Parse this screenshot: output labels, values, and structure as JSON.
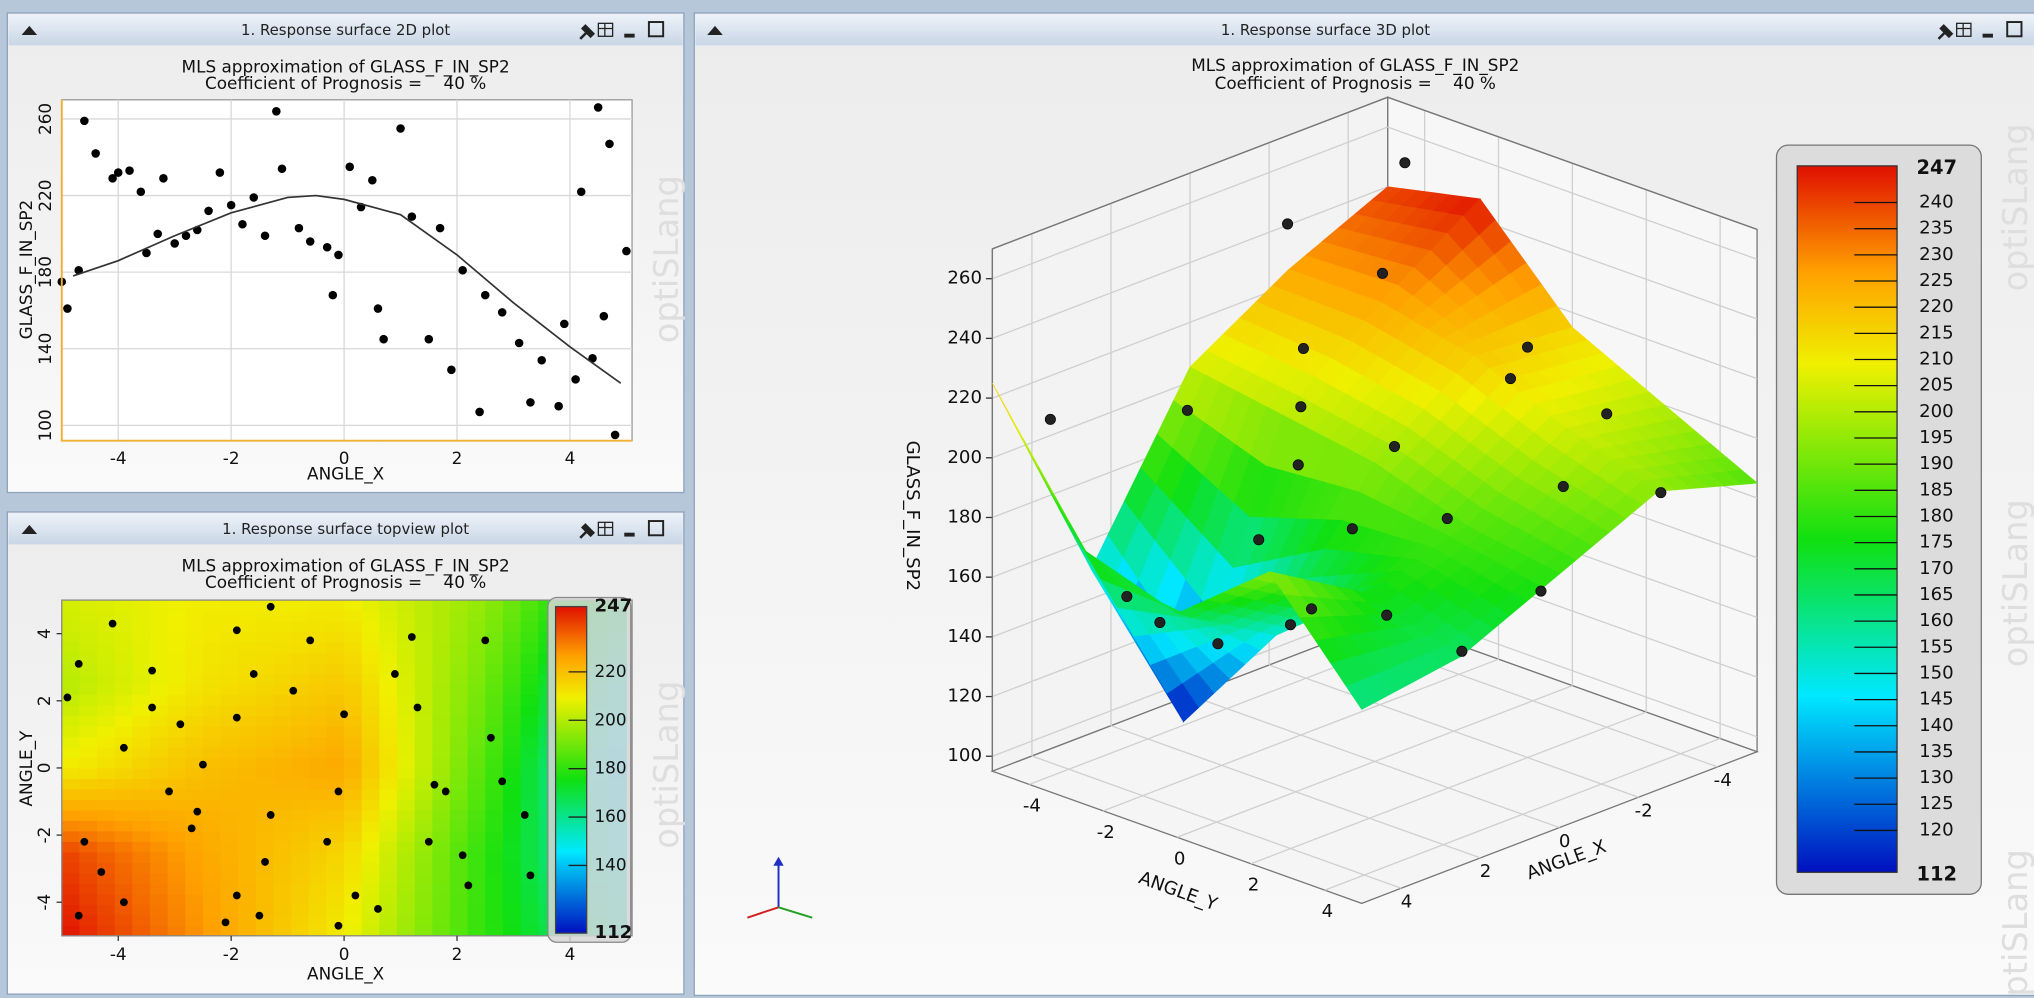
{
  "windows": [
    {
      "title": "1. Response surface 2D plot"
    },
    {
      "title": "1. Response surface topview plot"
    },
    {
      "title": "1. Response surface 3D plot"
    }
  ],
  "watermark": "optiSLang",
  "chart_data": [
    {
      "type": "scatter",
      "title": "MLS approximation of GLASS_F_IN_SP2",
      "subtitle": "Coefficient of Prognosis =    40 %",
      "x_label": "ANGLE_X",
      "y_label": "GLASS_F_IN_SP2",
      "xlim": [
        -5,
        5.1
      ],
      "ylim": [
        92,
        270
      ],
      "xticks": [
        -4,
        -2,
        0,
        2,
        4
      ],
      "yticks": [
        100,
        140,
        180,
        220,
        260
      ],
      "grid": true,
      "series": [
        {
          "mode": "markers",
          "color": "#000000",
          "x": [
            -5.0,
            -4.9,
            -4.7,
            -4.6,
            -4.4,
            -4.1,
            -4.0,
            -3.8,
            -3.6,
            -3.5,
            -3.3,
            -3.2,
            -3.0,
            -2.8,
            -2.6,
            -2.4,
            -2.2,
            -2.0,
            -1.8,
            -1.6,
            -1.4,
            -1.2,
            -1.1,
            -0.8,
            -0.6,
            -0.3,
            -0.1,
            -0.2,
            0.1,
            0.3,
            0.5,
            0.6,
            0.7,
            1.0,
            1.2,
            1.5,
            1.7,
            1.9,
            2.1,
            2.4,
            2.5,
            2.8,
            3.1,
            3.3,
            3.5,
            3.8,
            3.9,
            4.1,
            4.2,
            4.4,
            4.5,
            4.7,
            4.6,
            5.0,
            4.8
          ],
          "values": [
            175,
            161,
            181,
            259,
            242,
            229,
            232,
            233,
            222,
            190,
            200,
            229,
            195,
            199,
            202,
            212,
            232,
            215,
            205,
            219,
            199,
            264,
            234,
            203,
            196,
            193,
            189,
            168,
            235,
            214,
            228,
            161,
            145,
            255,
            209,
            145,
            203,
            129,
            181,
            107,
            168,
            159,
            143,
            112,
            134,
            110,
            153,
            124,
            222,
            135,
            266,
            247,
            157,
            191,
            95
          ]
        },
        {
          "mode": "line",
          "color": "#333333",
          "x": [
            -4.8,
            -4,
            -3,
            -2,
            -1,
            -0.5,
            0,
            1,
            2,
            3,
            4,
            4.9
          ],
          "values": [
            178,
            186,
            199,
            211,
            219,
            220,
            218,
            210,
            189,
            164,
            141,
            122
          ]
        }
      ]
    },
    {
      "type": "heatmap",
      "title": "MLS approximation of GLASS_F_IN_SP2",
      "subtitle": "Coefficient of Prognosis =    40 %",
      "x_label": "ANGLE_X",
      "y_label": "ANGLE_Y",
      "xlim": [
        -5,
        5.1
      ],
      "ylim": [
        -5,
        5
      ],
      "xticks": [
        -4,
        -2,
        0,
        2,
        4
      ],
      "yticks": [
        -4,
        -2,
        0,
        2,
        4
      ],
      "grid_x": [
        -5,
        -2.5,
        0,
        2.5,
        5
      ],
      "grid_y": [
        -5,
        -2.5,
        0,
        2.5,
        5
      ],
      "z": [
        [
          247,
          228,
          210,
          180,
          155
        ],
        [
          240,
          225,
          215,
          180,
          145
        ],
        [
          210,
          220,
          225,
          185,
          140
        ],
        [
          200,
          212,
          218,
          190,
          150
        ],
        [
          205,
          210,
          210,
          195,
          165
        ]
      ],
      "colorbar": {
        "lim": [
          112,
          247
        ],
        "ticks": [
          140,
          160,
          180,
          200,
          220
        ]
      },
      "points": {
        "color": "#000000",
        "x": [
          -4.9,
          -4.7,
          -4.1,
          -3.9,
          -3.4,
          -3.4,
          -2.9,
          -2.5,
          -2.6,
          -1.9,
          -1.9,
          -1.6,
          -1.3,
          -1.3,
          -1.4,
          -1.9,
          -2.1,
          -0.9,
          -0.6,
          0.0,
          -0.1,
          -0.3,
          0.6,
          0.2,
          0.9,
          1.2,
          1.3,
          1.6,
          1.8,
          1.5,
          2.1,
          2.2,
          2.5,
          2.6,
          2.8,
          3.2,
          3.3,
          -4.6,
          -4.3,
          -3.9,
          -4.7,
          -2.7,
          -3.1,
          -1.5,
          -0.1
        ],
        "y": [
          2.1,
          3.1,
          4.3,
          0.6,
          1.8,
          2.9,
          1.3,
          0.1,
          -1.3,
          4.1,
          1.5,
          2.8,
          4.8,
          -1.4,
          -2.8,
          -3.8,
          -4.6,
          2.3,
          3.8,
          1.6,
          -0.7,
          -2.2,
          -4.2,
          -3.8,
          2.8,
          3.9,
          1.8,
          -0.5,
          -0.7,
          -2.2,
          -2.6,
          -3.5,
          3.8,
          0.9,
          -0.4,
          -1.4,
          -3.2,
          -2.2,
          -3.1,
          -4.0,
          -4.4,
          -1.8,
          -0.7,
          -4.4,
          -4.7
        ]
      }
    },
    {
      "type": "surface3d",
      "title": "MLS approximation of GLASS_F_IN_SP2",
      "subtitle": "Coefficient of Prognosis =    40 %",
      "x_label": "ANGLE_X",
      "y_label": "ANGLE_Y",
      "z_label": "GLASS_F_IN_SP2",
      "xlim": [
        -5,
        5
      ],
      "ylim": [
        -5,
        5
      ],
      "zlim": [
        95,
        270
      ],
      "xticks": [
        -4,
        -2,
        0,
        2,
        4
      ],
      "yticks": [
        -4,
        -2,
        0,
        2,
        4
      ],
      "zticks": [
        100,
        120,
        140,
        160,
        180,
        200,
        220,
        240,
        260
      ],
      "grid_x": [
        -5,
        -2.5,
        0,
        2.5,
        5
      ],
      "grid_y": [
        -5,
        -2.5,
        0,
        2.5,
        5
      ],
      "z": [
        [
          240,
          225,
          205,
          150,
          225
        ],
        [
          247,
          225,
          200,
          110,
          180
        ],
        [
          215,
          218,
          195,
          150,
          170
        ],
        [
          200,
          205,
          185,
          175,
          195
        ],
        [
          185,
          195,
          180,
          165,
          160
        ]
      ],
      "colorbar": {
        "lim": [
          112,
          247
        ],
        "ticks": [
          120,
          125,
          130,
          135,
          140,
          145,
          150,
          155,
          160,
          165,
          170,
          175,
          180,
          185,
          190,
          195,
          200,
          205,
          210,
          215,
          220,
          225,
          230,
          235,
          240
        ]
      },
      "points": {
        "color": "#222222",
        "x": [
          -4.5,
          -3,
          -2,
          -1,
          0,
          1,
          2,
          3,
          4,
          4.5,
          -4,
          -2.5,
          -0.5,
          0.5,
          1.5,
          2.5,
          3.5,
          -3.5,
          -1.5,
          0,
          2,
          4,
          -4.8,
          3,
          1
        ],
        "y": [
          -4,
          -3,
          -4.5,
          -3,
          -2,
          -4,
          -1,
          -3.5,
          -4.5,
          -1,
          2,
          1,
          0,
          2.5,
          1,
          3,
          -0.5,
          4,
          3.5,
          4.5,
          4.5,
          2,
          -1,
          1.5,
          -1
        ],
        "z": [
          255,
          230,
          245,
          215,
          205,
          200,
          175,
          150,
          210,
          160,
          200,
          215,
          198,
          190,
          185,
          170,
          150,
          185,
          195,
          172,
          162,
          170,
          205,
          168,
          195
        ]
      }
    }
  ]
}
